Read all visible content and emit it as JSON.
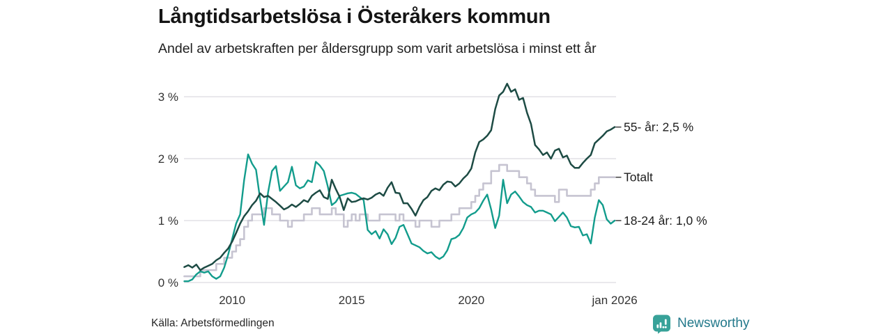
{
  "title": "Långtidsarbetslösa i Österåkers kommun",
  "subtitle": "Andel av arbetskraften per åldersgrupp som varit arbetslösa i minst ett år",
  "source": "Källa: Arbetsförmedlingen",
  "brand": {
    "name": "Newsworthy",
    "logo_color": "#38a299",
    "text_color": "#23798b"
  },
  "colors": {
    "grid": "#e2e0e6",
    "axis_text": "#333333",
    "label_text": "#1d1d1d",
    "connector": "#3c3c3c"
  },
  "chart_data": {
    "type": "line",
    "title": "Långtidsarbetslösa i Österåkers kommun",
    "subtitle": "Andel av arbetskraften per åldersgrupp som varit arbetslösa i minst ett år",
    "unit": "% av arbetskraften",
    "x_start": 2008.0,
    "x_step": 0.1666667,
    "x_end": 2026.0,
    "ylim": [
      0,
      3.35
    ],
    "grid": "horizontal",
    "legend_position": "right-end-labels",
    "y_axis": {
      "ticks": [
        {
          "value": 0,
          "label": "0 %"
        },
        {
          "value": 1,
          "label": "1 %"
        },
        {
          "value": 2,
          "label": "2 %"
        },
        {
          "value": 3,
          "label": "3 %"
        }
      ]
    },
    "x_axis": {
      "ticks": [
        {
          "year": 2010,
          "label": "2010"
        },
        {
          "year": 2015,
          "label": "2015"
        },
        {
          "year": 2020,
          "label": "2020"
        },
        {
          "year": 2026,
          "label": "jan 2026"
        }
      ]
    },
    "series": [
      {
        "name": "Totalt",
        "end_label": "Totalt",
        "color": "#c6c4d1",
        "width": 2.6,
        "step": true,
        "values": [
          0.1,
          0.1,
          0.1,
          0.1,
          0.2,
          0.2,
          0.2,
          0.2,
          0.3,
          0.3,
          0.4,
          0.4,
          0.5,
          0.6,
          0.7,
          0.9,
          1.0,
          1.1,
          1.1,
          1.1,
          1.2,
          1.2,
          1.1,
          1.1,
          1.0,
          1.0,
          0.9,
          1.0,
          1.0,
          1.0,
          1.1,
          1.1,
          1.2,
          1.2,
          1.1,
          1.1,
          1.1,
          1.2,
          1.1,
          1.1,
          0.9,
          1.0,
          1.1,
          1.0,
          1.1,
          1.1,
          1.0,
          1.0,
          1.0,
          1.1,
          1.1,
          1.1,
          1.1,
          1.0,
          1.1,
          1.0,
          1.0,
          1.0,
          0.9,
          1.0,
          1.0,
          1.0,
          0.9,
          0.9,
          1.0,
          1.0,
          1.0,
          1.1,
          1.1,
          1.2,
          1.2,
          1.2,
          1.3,
          1.4,
          1.5,
          1.6,
          1.6,
          1.8,
          1.8,
          1.9,
          1.9,
          1.8,
          1.8,
          1.8,
          1.7,
          1.7,
          1.6,
          1.5,
          1.4,
          1.4,
          1.4,
          1.4,
          1.4,
          1.3,
          1.5,
          1.5,
          1.4,
          1.4,
          1.4,
          1.4,
          1.4,
          1.4,
          1.5,
          1.6,
          1.7,
          1.7,
          1.7,
          1.7,
          1.7
        ]
      },
      {
        "name": "18-24 år",
        "end_label": "18-24 år: 1,0 %",
        "color": "#129c8c",
        "width": 2.4,
        "step": false,
        "values": [
          0.02,
          0.02,
          0.05,
          0.13,
          0.18,
          0.16,
          0.18,
          0.1,
          0.06,
          0.1,
          0.24,
          0.45,
          0.7,
          0.95,
          1.1,
          1.65,
          2.07,
          1.92,
          1.82,
          1.35,
          0.93,
          1.45,
          1.8,
          1.88,
          1.48,
          1.55,
          1.62,
          1.87,
          1.57,
          1.52,
          1.55,
          1.65,
          1.62,
          1.95,
          1.89,
          1.8,
          1.55,
          1.25,
          1.3,
          1.4,
          1.42,
          1.44,
          1.45,
          1.43,
          1.38,
          1.33,
          0.85,
          0.78,
          0.83,
          0.71,
          0.86,
          0.78,
          0.62,
          0.72,
          0.9,
          0.93,
          0.78,
          0.63,
          0.6,
          0.57,
          0.51,
          0.47,
          0.49,
          0.42,
          0.38,
          0.42,
          0.52,
          0.7,
          0.72,
          0.77,
          0.88,
          1.05,
          1.1,
          1.13,
          1.2,
          1.32,
          1.42,
          1.18,
          0.88,
          1.08,
          1.66,
          1.28,
          1.42,
          1.47,
          1.39,
          1.3,
          1.25,
          1.22,
          1.13,
          1.16,
          1.16,
          1.13,
          1.1,
          0.99,
          1.06,
          1.13,
          1.05,
          0.91,
          0.89,
          0.9,
          0.76,
          0.78,
          0.63,
          1.05,
          1.33,
          1.25,
          1.02,
          0.95,
          1.0
        ]
      },
      {
        "name": "55- år",
        "end_label": "55- år: 2,5 %",
        "color": "#1d4b44",
        "width": 2.5,
        "step": false,
        "values": [
          0.25,
          0.28,
          0.24,
          0.29,
          0.2,
          0.24,
          0.27,
          0.3,
          0.36,
          0.4,
          0.48,
          0.55,
          0.66,
          0.8,
          0.95,
          1.07,
          1.15,
          1.25,
          1.32,
          1.44,
          1.38,
          1.4,
          1.35,
          1.3,
          1.24,
          1.18,
          1.21,
          1.26,
          1.22,
          1.27,
          1.33,
          1.3,
          1.4,
          1.45,
          1.49,
          1.38,
          1.35,
          1.66,
          1.51,
          1.38,
          1.17,
          1.36,
          1.3,
          1.31,
          1.34,
          1.36,
          1.34,
          1.37,
          1.42,
          1.45,
          1.4,
          1.53,
          1.62,
          1.45,
          1.44,
          1.28,
          1.28,
          1.19,
          1.08,
          1.22,
          1.33,
          1.38,
          1.48,
          1.52,
          1.49,
          1.58,
          1.63,
          1.62,
          1.55,
          1.6,
          1.68,
          1.74,
          1.84,
          2.1,
          2.27,
          2.31,
          2.37,
          2.46,
          2.8,
          3.02,
          3.08,
          3.21,
          3.08,
          3.12,
          2.95,
          2.98,
          2.74,
          2.56,
          2.22,
          2.15,
          2.06,
          2.1,
          2.0,
          2.13,
          2.16,
          2.02,
          2.05,
          1.91,
          1.85,
          1.85,
          1.93,
          2.0,
          2.06,
          2.25,
          2.31,
          2.37,
          2.44,
          2.47,
          2.51
        ]
      }
    ]
  }
}
